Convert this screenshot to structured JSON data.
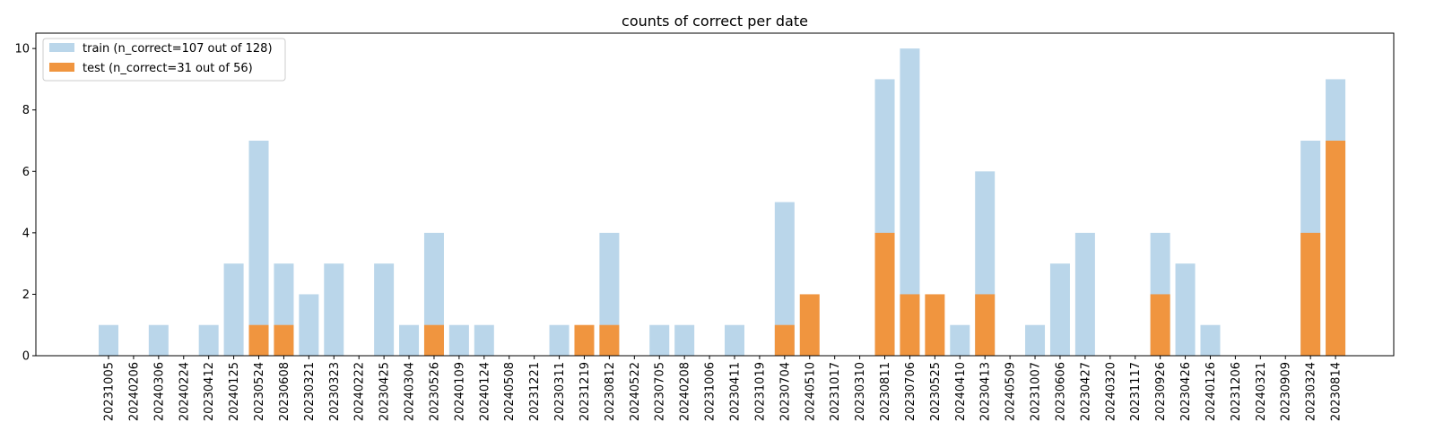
{
  "chart_data": {
    "type": "bar",
    "title": "counts of correct per date",
    "xlabel": "",
    "ylabel": "",
    "ylim": [
      0,
      10.5
    ],
    "yticks": [
      0,
      2,
      4,
      6,
      8,
      10
    ],
    "grid": false,
    "legend_position": "top-left",
    "overlay": true,
    "categories": [
      "20231005",
      "20240206",
      "20240306",
      "20240224",
      "20230412",
      "20240125",
      "20230524",
      "20230608",
      "20230321",
      "20230323",
      "20240222",
      "20230425",
      "20240304",
      "20230526",
      "20240109",
      "20240124",
      "20240508",
      "20231221",
      "20230311",
      "20231219",
      "20230812",
      "20240522",
      "20230705",
      "20240208",
      "20231006",
      "20230411",
      "20231019",
      "20230704",
      "20240510",
      "20231017",
      "20230310",
      "20230811",
      "20230706",
      "20230525",
      "20240410",
      "20230413",
      "20240509",
      "20231007",
      "20230606",
      "20230427",
      "20240320",
      "20231117",
      "20230926",
      "20230426",
      "20240126",
      "20231206",
      "20240321",
      "20230909",
      "20230324",
      "20230814"
    ],
    "series": [
      {
        "name": "train (n_correct=107 out of 128)",
        "color": "#bad6ea",
        "values": [
          1,
          0,
          1,
          0,
          1,
          3,
          7,
          3,
          2,
          3,
          0,
          3,
          1,
          4,
          1,
          1,
          0,
          0,
          1,
          0,
          4,
          0,
          1,
          1,
          0,
          1,
          0,
          5,
          0,
          0,
          0,
          9,
          10,
          0,
          1,
          6,
          0,
          1,
          3,
          4,
          0,
          0,
          4,
          3,
          1,
          0,
          0,
          0,
          7,
          9
        ]
      },
      {
        "name": "test (n_correct=31 out of 56)",
        "color": "#f0953f",
        "values": [
          0,
          0,
          0,
          0,
          0,
          0,
          1,
          1,
          0,
          0,
          0,
          0,
          0,
          1,
          0,
          0,
          0,
          0,
          0,
          1,
          1,
          0,
          0,
          0,
          0,
          0,
          0,
          1,
          2,
          0,
          0,
          4,
          2,
          2,
          0,
          2,
          0,
          0,
          0,
          0,
          0,
          0,
          2,
          0,
          0,
          0,
          0,
          0,
          4,
          7
        ]
      }
    ]
  }
}
